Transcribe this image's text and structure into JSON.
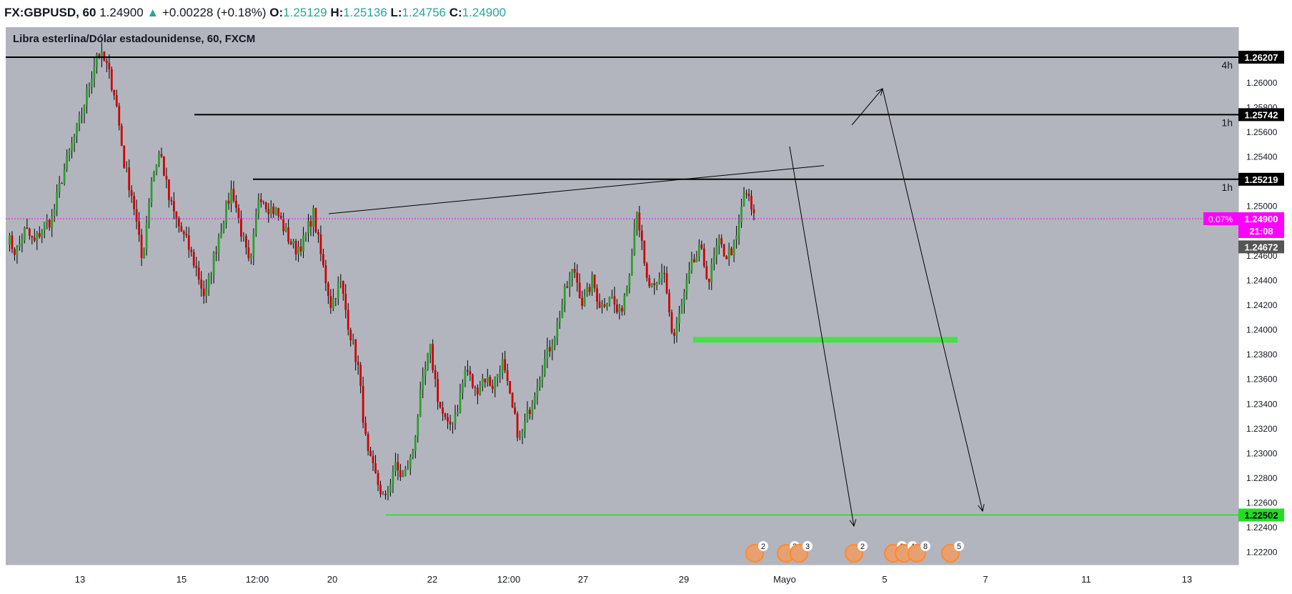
{
  "header": {
    "symbol": "FX:GBPUSD, 60",
    "last": "1.24900",
    "arrow": "▲",
    "change": "+0.00228 (+0.18%)",
    "o_label": "O:",
    "o": "1.25129",
    "h_label": "H:",
    "h": "1.25136",
    "l_label": "L:",
    "l": "1.24756",
    "c_label": "C:",
    "c": "1.24900"
  },
  "chart_title": "Libra esterlina/Dólar estadounidense, 60, FXCM",
  "colors": {
    "background": "#b2b5be",
    "up": "#2e9e2e",
    "down": "#d10000",
    "line": "#000000",
    "zone": "#4cdb4c",
    "price_tag": "#ff00ff"
  },
  "chart_data": {
    "type": "candlestick",
    "symbol": "GBPUSD",
    "interval": "60",
    "ylim": [
      1.221,
      1.2645
    ],
    "y_ticks": [
      "1.26000",
      "1.25800",
      "1.25600",
      "1.25400",
      "1.25000",
      "1.24600",
      "1.24400",
      "1.24200",
      "1.24000",
      "1.23800",
      "1.23600",
      "1.23400",
      "1.23200",
      "1.23000",
      "1.22800",
      "1.22600",
      "1.22400",
      "1.22200"
    ],
    "x_ticks": [
      "13",
      "15",
      "12:00",
      "20",
      "22",
      "12:00",
      "27",
      "29",
      "Mayo",
      "5",
      "7",
      "11",
      "13"
    ],
    "price_path": [
      1.2475,
      1.2462,
      1.2481,
      1.247,
      1.2484,
      1.249,
      1.2521,
      1.2545,
      1.2568,
      1.2595,
      1.2625,
      1.2615,
      1.259,
      1.2535,
      1.2505,
      1.2455,
      1.2521,
      1.2545,
      1.2505,
      1.2485,
      1.247,
      1.245,
      1.2425,
      1.246,
      1.249,
      1.2515,
      1.248,
      1.2448,
      1.2512,
      1.25,
      1.2495,
      1.2478,
      1.2465,
      1.2472,
      1.2495,
      1.2455,
      1.242,
      1.244,
      1.2402,
      1.237,
      1.23,
      1.228,
      1.226,
      1.229,
      1.228,
      1.2298,
      1.235,
      1.2385,
      1.234,
      1.232,
      1.2335,
      1.237,
      1.235,
      1.2362,
      1.2355,
      1.2375,
      1.234,
      1.231,
      1.2335,
      1.236,
      1.238,
      1.24,
      1.243,
      1.245,
      1.242,
      1.244,
      1.2418,
      1.243,
      1.241,
      1.244,
      1.25,
      1.244,
      1.243,
      1.245,
      1.239,
      1.242,
      1.245,
      1.2465,
      1.244,
      1.247,
      1.246,
      1.247,
      1.2515,
      1.249
    ],
    "horizontal_levels": [
      {
        "price": "1.26207",
        "label": "4h"
      },
      {
        "price": "1.25742",
        "label": "1h"
      },
      {
        "price": "1.25219",
        "label": "1h"
      },
      {
        "price": "1.22502",
        "label": ""
      }
    ],
    "price_labels": {
      "current_pct": "0.07%",
      "current": "1.24900",
      "countdown": "21:08",
      "other": "1.24672"
    },
    "events": [
      "2",
      "2",
      "3",
      "2",
      "6",
      "4",
      "8",
      "5"
    ]
  }
}
